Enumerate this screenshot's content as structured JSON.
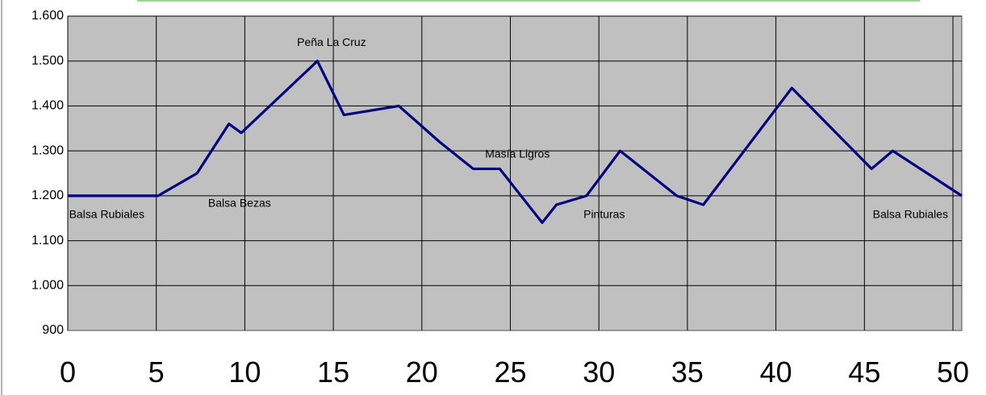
{
  "chart_data": {
    "type": "line",
    "title": "",
    "xlabel": "",
    "ylabel": "",
    "xlim": [
      0,
      50.5
    ],
    "ylim": [
      900,
      1600
    ],
    "grid": true,
    "y_ticks": [
      "900",
      "1.000",
      "1.100",
      "1.200",
      "1.300",
      "1.400",
      "1.500",
      "1.600"
    ],
    "y_tick_values": [
      900,
      1000,
      1100,
      1200,
      1300,
      1400,
      1500,
      1600
    ],
    "x_ticks": [
      "0",
      "5",
      "10",
      "15",
      "20",
      "25",
      "30",
      "35",
      "40",
      "45",
      "50"
    ],
    "x_tick_values": [
      0,
      5,
      10,
      15,
      20,
      25,
      30,
      35,
      40,
      45,
      50
    ],
    "series": [
      {
        "color": "#000080",
        "x": [
          0,
          5.1,
          7.3,
          9.1,
          9.8,
          14.1,
          15.6,
          18.7,
          21,
          22.9,
          24.4,
          26.8,
          27.6,
          29.3,
          31.2,
          34.4,
          35.9,
          40.9,
          45.4,
          46.6,
          50.5
        ],
        "y": [
          1200,
          1200,
          1250,
          1360,
          1340,
          1500,
          1380,
          1400,
          1320,
          1260,
          1260,
          1140,
          1180,
          1200,
          1300,
          1200,
          1180,
          1440,
          1260,
          1300,
          1200
        ]
      }
    ],
    "annotations": [
      {
        "text": "Peña La Cruz",
        "x": 14.9,
        "y": 1540
      },
      {
        "text": "Balsa Bezas",
        "x": 9.7,
        "y": 1182
      },
      {
        "text": "Masía Ligros",
        "x": 25.4,
        "y": 1292
      },
      {
        "text": "Pinturas",
        "x": 30.3,
        "y": 1157
      },
      {
        "text": "Balsa Rubiales",
        "x": 2.2,
        "y": 1157
      },
      {
        "text": "Balsa Rubiales",
        "x": 47.6,
        "y": 1157
      }
    ]
  }
}
